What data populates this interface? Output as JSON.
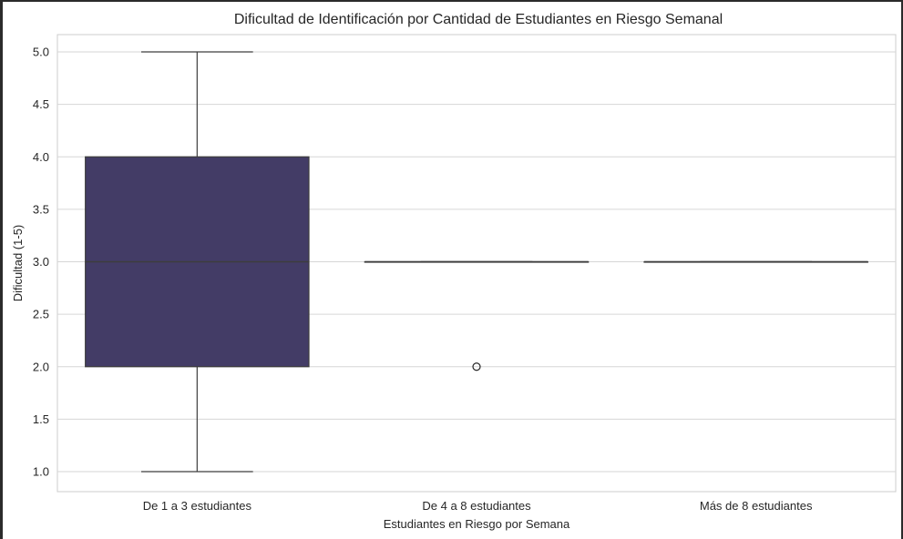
{
  "chart_data": {
    "type": "box",
    "title": "Dificultad de Identificación por Cantidad de Estudiantes en Riesgo Semanal",
    "xlabel": "Estudiantes en Riesgo por Semana",
    "ylabel": "Dificultad (1-5)",
    "categories": [
      "De 1 a 3 estudiantes",
      "De 4 a 8 estudiantes",
      "Más de 8 estudiantes"
    ],
    "ylim": [
      0.8,
      5.2
    ],
    "yticks": [
      "1.0",
      "1.5",
      "2.0",
      "2.5",
      "3.0",
      "3.5",
      "4.0",
      "4.5",
      "5.0"
    ],
    "grid": true,
    "box_color": "#433c66",
    "boxes": [
      {
        "category": "De 1 a 3 estudiantes",
        "whisker_low": 1.0,
        "q1": 2.0,
        "median": 3.0,
        "q3": 4.0,
        "whisker_high": 5.0,
        "outliers": []
      },
      {
        "category": "De 4 a 8 estudiantes",
        "whisker_low": 3.0,
        "q1": 3.0,
        "median": 3.0,
        "q3": 3.0,
        "whisker_high": 3.0,
        "outliers": [
          2.0
        ]
      },
      {
        "category": "Más de 8 estudiantes",
        "whisker_low": 3.0,
        "q1": 3.0,
        "median": 3.0,
        "q3": 3.0,
        "whisker_high": 3.0,
        "outliers": []
      }
    ]
  }
}
